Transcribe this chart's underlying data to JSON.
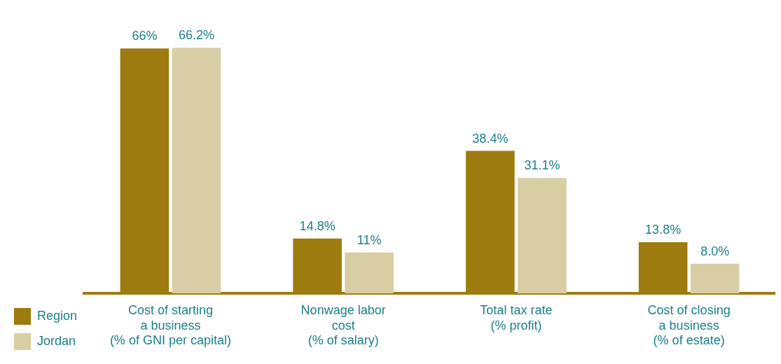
{
  "chart_data": {
    "type": "bar",
    "categories": [
      "Cost of starting\na business\n(% of GNI per capital)",
      "Nonwage labor\ncost\n(% of salary)",
      "Total tax rate\n(% profit)",
      "Cost of closing\na business\n(% of estate)"
    ],
    "series": [
      {
        "name": "Region",
        "color": "#9e7b0f",
        "values": [
          66,
          14.8,
          38.4,
          13.8
        ],
        "value_labels": [
          "66%",
          "14.8%",
          "38.4%",
          "13.8%"
        ]
      },
      {
        "name": "Jordan",
        "color": "#d9cda4",
        "values": [
          66.2,
          11,
          31.1,
          8.0
        ],
        "value_labels": [
          "66.2%",
          "11%",
          "31.1%",
          "8.0%"
        ]
      }
    ],
    "grid": false,
    "legend": "bottom left",
    "tick_labels": "x"
  }
}
